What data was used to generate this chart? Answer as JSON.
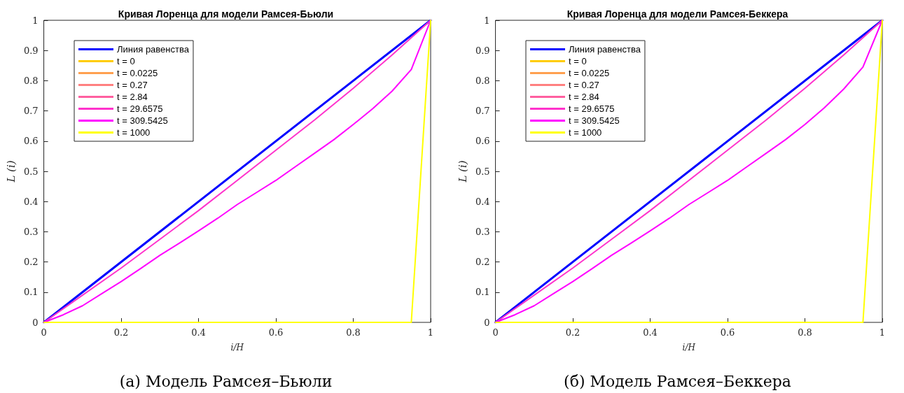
{
  "chart_data": [
    {
      "type": "line",
      "title": "Кривая Лоренца для модели Рамсея-Бьюли",
      "xlabel": "i/H",
      "ylabel": "L (i)",
      "annotations": [
        "(а) Модель Рамсея–Бьюли"
      ],
      "xlim": [
        0,
        1
      ],
      "ylim": [
        0,
        1
      ],
      "xticks": [
        0,
        0.2,
        0.4,
        0.6,
        0.8,
        1
      ],
      "yticks": [
        0,
        0.1,
        0.2,
        0.3,
        0.4,
        0.5,
        0.6,
        0.7,
        0.8,
        0.9,
        1
      ],
      "grid": false,
      "legend": "top left",
      "line_style": "solid",
      "marker": "none",
      "series": [
        {
          "name": "Линия равенства",
          "color": "#0000ff",
          "x": [
            0,
            1
          ],
          "values": [
            0,
            1
          ]
        },
        {
          "name": "t = 0",
          "color": "#ffcc00"
        },
        {
          "name": "t = 0.0225",
          "color": "#ffa050"
        },
        {
          "name": "t = 0.27",
          "color": "#ff8080"
        },
        {
          "name": "t = 2.84",
          "color": "#ff5fa0"
        },
        {
          "name": "t = 29.6575",
          "color": "#ff33cc",
          "x": [
            0,
            0.1,
            0.2,
            0.3,
            0.4,
            0.5,
            0.6,
            0.7,
            0.8,
            0.9,
            1
          ],
          "values": [
            0,
            0.09,
            0.18,
            0.275,
            0.37,
            0.47,
            0.57,
            0.67,
            0.775,
            0.885,
            1
          ]
        },
        {
          "name": "t = 309.5425",
          "color": "#ff00ff",
          "x": [
            0,
            0.05,
            0.1,
            0.15,
            0.2,
            0.25,
            0.3,
            0.35,
            0.4,
            0.45,
            0.5,
            0.55,
            0.6,
            0.65,
            0.7,
            0.75,
            0.8,
            0.85,
            0.9,
            0.95,
            1
          ],
          "values": [
            0,
            0.025,
            0.055,
            0.095,
            0.135,
            0.178,
            0.222,
            0.262,
            0.303,
            0.345,
            0.39,
            0.43,
            0.47,
            0.515,
            0.56,
            0.605,
            0.655,
            0.707,
            0.765,
            0.837,
            1
          ]
        },
        {
          "name": "t = 1000",
          "color": "#ffff00",
          "x": [
            0,
            0.95,
            1
          ],
          "values": [
            0,
            0,
            1
          ]
        }
      ]
    },
    {
      "type": "line",
      "title": "Кривая Лоренца для модели Рамсея-Беккера",
      "xlabel": "i/H",
      "ylabel": "L (i)",
      "annotations": [
        "(б) Модель Рамсея–Беккера"
      ],
      "xlim": [
        0,
        1
      ],
      "ylim": [
        0,
        1
      ],
      "xticks": [
        0,
        0.2,
        0.4,
        0.6,
        0.8,
        1
      ],
      "yticks": [
        0,
        0.1,
        0.2,
        0.3,
        0.4,
        0.5,
        0.6,
        0.7,
        0.8,
        0.9,
        1
      ],
      "grid": false,
      "legend": "top left",
      "line_style": "solid",
      "marker": "none",
      "series": [
        {
          "name": "Линия равенства",
          "color": "#0000ff",
          "x": [
            0,
            1
          ],
          "values": [
            0,
            1
          ]
        },
        {
          "name": "t = 0",
          "color": "#ffcc00"
        },
        {
          "name": "t = 0.0225",
          "color": "#ffa050"
        },
        {
          "name": "t = 0.27",
          "color": "#ff8080"
        },
        {
          "name": "t = 2.84",
          "color": "#ff5fa0"
        },
        {
          "name": "t = 29.6575",
          "color": "#ff33cc",
          "x": [
            0,
            0.1,
            0.2,
            0.3,
            0.4,
            0.5,
            0.6,
            0.7,
            0.8,
            0.9,
            1
          ],
          "values": [
            0,
            0.09,
            0.18,
            0.275,
            0.37,
            0.47,
            0.57,
            0.67,
            0.775,
            0.885,
            1
          ]
        },
        {
          "name": "t = 309.5425",
          "color": "#ff00ff",
          "x": [
            0,
            0.05,
            0.1,
            0.15,
            0.2,
            0.25,
            0.3,
            0.35,
            0.4,
            0.45,
            0.5,
            0.55,
            0.6,
            0.65,
            0.7,
            0.75,
            0.8,
            0.85,
            0.9,
            0.95,
            1
          ],
          "values": [
            0,
            0.025,
            0.055,
            0.095,
            0.135,
            0.178,
            0.222,
            0.262,
            0.303,
            0.345,
            0.39,
            0.43,
            0.47,
            0.515,
            0.56,
            0.605,
            0.655,
            0.71,
            0.772,
            0.845,
            1
          ]
        },
        {
          "name": "t = 1000",
          "color": "#ffff00",
          "x": [
            0,
            0.95,
            1
          ],
          "values": [
            0,
            0,
            1
          ]
        }
      ]
    }
  ]
}
